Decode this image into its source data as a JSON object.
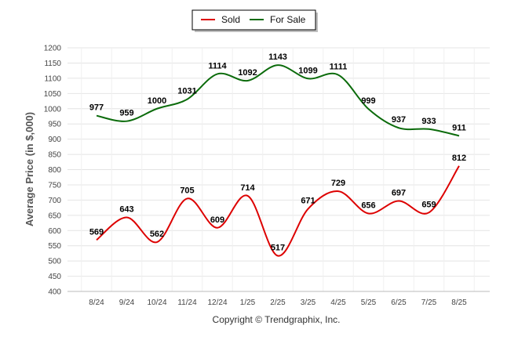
{
  "chart_data": {
    "type": "line",
    "categories": [
      "8/24",
      "9/24",
      "10/24",
      "11/24",
      "12/24",
      "1/25",
      "2/25",
      "3/25",
      "4/25",
      "5/25",
      "6/25",
      "7/25",
      "8/25"
    ],
    "series": [
      {
        "name": "Sold",
        "color": "#dd0000",
        "values": [
          569,
          643,
          562,
          705,
          609,
          714,
          517,
          671,
          729,
          656,
          697,
          659,
          812
        ]
      },
      {
        "name": "For Sale",
        "color": "#0b6b0b",
        "values": [
          977,
          959,
          1000,
          1031,
          1114,
          1092,
          1143,
          1099,
          1111,
          999,
          937,
          933,
          911
        ]
      }
    ],
    "ylabel": "Average Price (in $,000)",
    "ylim": [
      400,
      1200
    ],
    "ytick_step": 50,
    "legend_position": "top-center",
    "grid": true,
    "smooth": true
  },
  "footer": {
    "copyright": "Copyright © Trendgraphix, Inc."
  }
}
